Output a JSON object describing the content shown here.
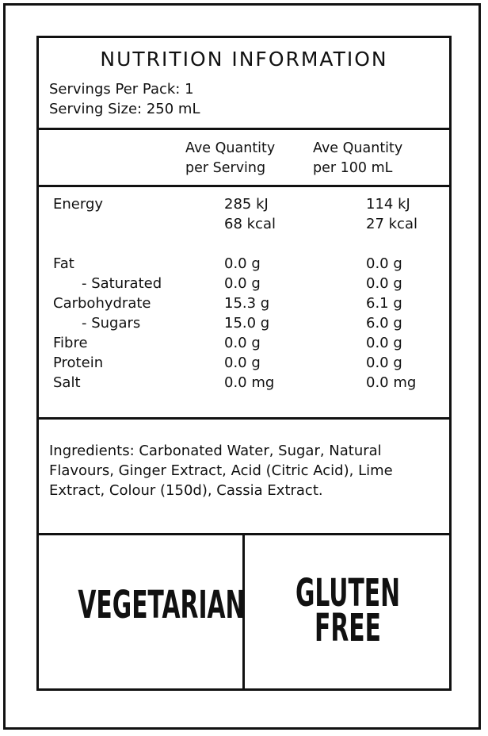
{
  "header": {
    "title": "NUTRITION INFORMATION",
    "servings_per_pack": "Servings Per Pack: 1",
    "serving_size": "Serving Size: 250 mL"
  },
  "columns": {
    "per_serving": [
      "Ave Quantity",
      "per Serving"
    ],
    "per_100ml": [
      "Ave Quantity",
      "per 100 mL"
    ]
  },
  "nutrients": [
    {
      "name": "Energy",
      "per_serving": "285 kJ",
      "per_100ml": "114 kJ"
    },
    {
      "name": "",
      "per_serving": "68 kcal",
      "per_100ml": "27 kcal"
    },
    {
      "name": "Fat",
      "per_serving": "0.0 g",
      "per_100ml": "0.0 g"
    },
    {
      "name": "- Saturated",
      "per_serving": "0.0 g",
      "per_100ml": "0.0 g"
    },
    {
      "name": "Carbohydrate",
      "per_serving": "15.3 g",
      "per_100ml": "6.1 g"
    },
    {
      "name": "- Sugars",
      "per_serving": "15.0 g",
      "per_100ml": "6.0 g"
    },
    {
      "name": "Fibre",
      "per_serving": "0.0 g",
      "per_100ml": "0.0 g"
    },
    {
      "name": "Protein",
      "per_serving": "0.0 g",
      "per_100ml": "0.0 g"
    },
    {
      "name": "Salt",
      "per_serving": "0.0 mg",
      "per_100ml": "0.0 mg"
    }
  ],
  "ingredients": {
    "lines": [
      "Ingredients: Carbonated Water, Sugar, Natural",
      "Flavours, Ginger Extract, Acid (Citric Acid), Lime",
      "Extract, Colour (150d), Cassia Extract."
    ]
  },
  "badges": {
    "vegetarian": "VEGETARIAN",
    "gluten_free": [
      "GLUTEN",
      "FREE"
    ]
  }
}
